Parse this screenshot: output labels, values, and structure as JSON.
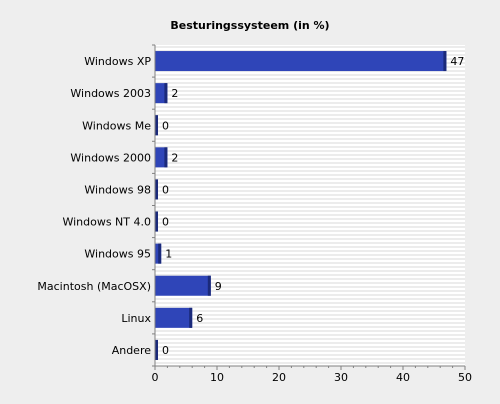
{
  "chart_data": {
    "type": "bar",
    "orientation": "horizontal",
    "title": "Besturingssysteem (in %)",
    "categories": [
      "Windows XP",
      "Windows 2003",
      "Windows Me",
      "Windows 2000",
      "Windows 98",
      "Windows NT 4.0",
      "Windows 95",
      "Macintosh (MacOSX)",
      "Linux",
      "Andere"
    ],
    "values": [
      47,
      2,
      0,
      2,
      0,
      0,
      1,
      9,
      6,
      0
    ],
    "xlim": [
      0,
      50
    ],
    "xticks": [
      0,
      10,
      20,
      30,
      40,
      50
    ],
    "xlabel": "",
    "ylabel": "",
    "grid": "horizontal stripes",
    "legend": "none",
    "colors": {
      "bar": "#2f45b8",
      "bar_edge": "#1b2a7a",
      "background": "#eeeeee",
      "plot_background": "#ffffff",
      "grid": "#d9d9d9",
      "axis": "#808080",
      "text": "#000000"
    }
  }
}
